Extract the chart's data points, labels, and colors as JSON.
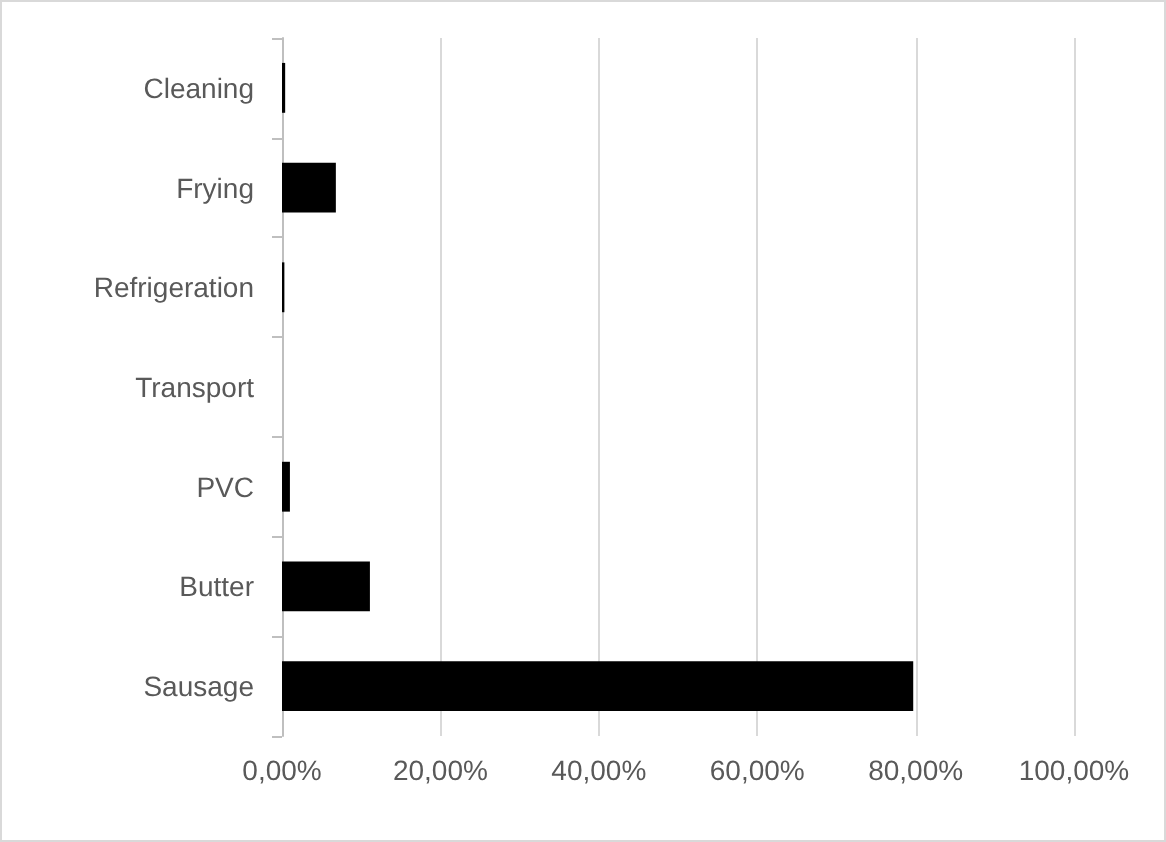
{
  "chart_data": {
    "type": "bar",
    "orientation": "horizontal",
    "categories": [
      "Cleaning",
      "Frying",
      "Refrigeration",
      "Transport",
      "PVC",
      "Butter",
      "Sausage"
    ],
    "values": [
      0.4,
      6.8,
      0.3,
      0,
      1.0,
      11.1,
      79.7
    ],
    "color": "#000000",
    "xlim": [
      0,
      100
    ],
    "xticks": [
      {
        "value": 0,
        "label": "0,00%"
      },
      {
        "value": 20,
        "label": "20,00%"
      },
      {
        "value": 40,
        "label": "40,00%"
      },
      {
        "value": 60,
        "label": "60,00%"
      },
      {
        "value": 80,
        "label": "80,00%"
      },
      {
        "value": 100,
        "label": "100,00%"
      }
    ],
    "grid": "x"
  }
}
